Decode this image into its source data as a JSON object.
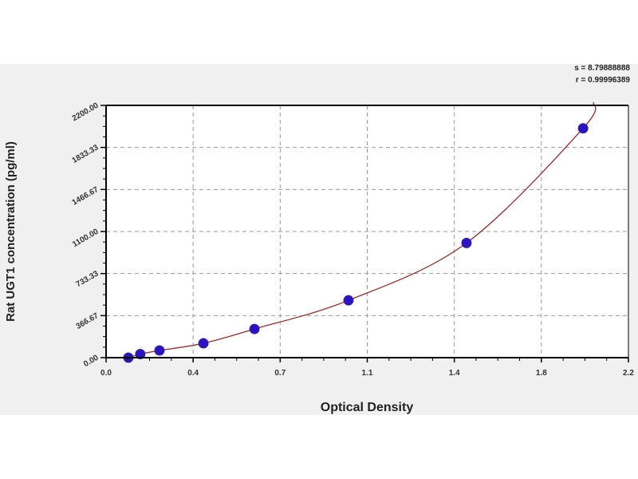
{
  "chart_data": {
    "type": "scatter",
    "title": "",
    "xlabel": "Optical Density",
    "ylabel": "Rat UGT1 concentration (pg/ml)",
    "xlim": [
      0,
      2.2
    ],
    "ylim": [
      0,
      2200
    ],
    "x_ticks": [
      "0.0",
      "0.4",
      "0.7",
      "1.1",
      "1.4",
      "1.8",
      "2.2"
    ],
    "y_ticks": [
      "0.00",
      "366.67",
      "733.33",
      "1100.00",
      "1466.67",
      "1833.33",
      "2200.00"
    ],
    "grid": true,
    "points": [
      {
        "x": 0.094,
        "y": 0
      },
      {
        "x": 0.144,
        "y": 31.25
      },
      {
        "x": 0.225,
        "y": 62.5
      },
      {
        "x": 0.41,
        "y": 125
      },
      {
        "x": 0.625,
        "y": 250
      },
      {
        "x": 1.021,
        "y": 500
      },
      {
        "x": 1.518,
        "y": 1000
      },
      {
        "x": 2.009,
        "y": 2000
      }
    ],
    "fit_line": true,
    "stats": {
      "s": "s = 8.79888888",
      "r": "r = 0.99996389"
    },
    "colors": {
      "points": "#2a12c8",
      "curve": "#a0282a",
      "grid": "#999999"
    }
  }
}
